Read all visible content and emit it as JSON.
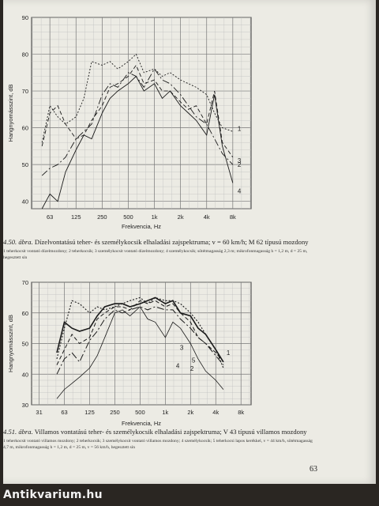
{
  "figures": [
    {
      "caption_label": "4.50. ábra.",
      "caption_text": "Dízelvontatású teher- és személykocsik elhaladási zajspektruma; v = 60 km/h; M 62 típusú mozdony",
      "caption_note": "1 teherkocsit vontató dízelmozdony; 2 teherkocsik; 3 személykocsit vontató dízelmozdony; 4 személykocsik; sötétmagasság 2,3 m; mikrofonmagasság h = 1,2 m, d = 25 m, hegesztett sín"
    },
    {
      "caption_label": "4.51. ábra.",
      "caption_text": "Villamos vontatású teher- és személykocsik elhaladási zajspektruma; V 43 típusú villamos mozdony",
      "caption_note": "1 teherkocsit vontató villamos mozdony; 2 teherkocsik; 3 személykocsit vontató villamos mozdony; 4 személykocsik; 5 teherkocsi lapos kerékkel, v = 44 km/h, sötétmagasság 4,7 m, mikrofonmagasság h = 1,2 m, d = 25 m, v = 56 km/h, hegesztett sín"
    }
  ],
  "page_number": "63",
  "watermark": "Antikvarium.hu",
  "chart_data": [
    {
      "type": "line",
      "xlabel": "Frekvencia, Hz",
      "ylabel": "Hangnyomásszint, dB",
      "ylim": [
        38,
        90
      ],
      "yticks": [
        40,
        50,
        60,
        70,
        80,
        90
      ],
      "categories": [
        "63",
        "125",
        "250",
        "500",
        "1k",
        "2k",
        "4k",
        "8k"
      ],
      "xlim": [
        -0.7,
        7.7
      ],
      "grid": true,
      "series": [
        {
          "name": "1",
          "x": [
            -0.3,
            0,
            0.3,
            0.6,
            1,
            1.3,
            1.6,
            2,
            2.3,
            2.6,
            3,
            3.3,
            3.6,
            4,
            4.3,
            4.6,
            5,
            5.3,
            5.6,
            6,
            6.3,
            6.6,
            7
          ],
          "y": [
            56,
            66,
            63,
            61,
            63,
            68,
            78,
            77,
            78,
            76,
            78,
            80,
            75,
            76,
            74,
            75,
            73,
            72,
            71,
            69,
            64,
            60,
            59
          ]
        },
        {
          "name": "2",
          "x": [
            -0.3,
            0,
            0.3,
            0.6,
            1,
            1.3,
            1.6,
            2,
            2.3,
            2.6,
            3,
            3.3,
            3.6,
            4,
            4.3,
            4.6,
            5,
            5.3,
            5.6,
            6,
            6.3,
            6.6,
            7
          ],
          "y": [
            47,
            49,
            50,
            52,
            57,
            59,
            61,
            69,
            72,
            71,
            75,
            74,
            71,
            76,
            73,
            72,
            69,
            66,
            63,
            61,
            57,
            53,
            50
          ]
        },
        {
          "name": "3",
          "x": [
            -0.3,
            0,
            0.3,
            0.6,
            1,
            1.3,
            1.6,
            2,
            2.3,
            2.6,
            3,
            3.3,
            3.6,
            4,
            4.3,
            4.6,
            5,
            5.3,
            5.6,
            6,
            6.3,
            6.6,
            7
          ],
          "y": [
            55,
            64,
            66,
            61,
            57,
            58,
            62,
            66,
            71,
            72,
            74,
            77,
            72,
            73,
            70,
            70,
            67,
            65,
            66,
            61,
            70,
            56,
            52
          ]
        },
        {
          "name": "4",
          "x": [
            -0.3,
            0,
            0.3,
            0.6,
            1,
            1.3,
            1.6,
            2,
            2.3,
            2.6,
            3,
            3.3,
            3.6,
            4,
            4.3,
            4.6,
            5,
            5.3,
            5.6,
            6,
            6.3,
            6.6,
            7
          ],
          "y": [
            38,
            42,
            40,
            48,
            54,
            58,
            57,
            64,
            68,
            70,
            72,
            74,
            70,
            72,
            68,
            70,
            66,
            64,
            62,
            58,
            69,
            55,
            45
          ]
        }
      ]
    },
    {
      "type": "line",
      "xlabel": "Frekvencia, Hz",
      "ylabel": "Hangnyomásszint, dB",
      "ylim": [
        30,
        70
      ],
      "yticks": [
        30,
        40,
        50,
        60,
        70
      ],
      "categories": [
        "31",
        "63",
        "125",
        "250",
        "500",
        "1k",
        "2k",
        "4k",
        "8k"
      ],
      "xlim": [
        -0.3,
        8.4
      ],
      "grid": true,
      "series": [
        {
          "name": "1",
          "x": [
            0.7,
            1,
            1.3,
            1.6,
            2,
            2.3,
            2.6,
            3,
            3.3,
            3.6,
            4,
            4.3,
            4.6,
            5,
            5.3,
            5.6,
            6,
            6.3,
            6.6,
            7,
            7.3
          ],
          "y": [
            47,
            57,
            55,
            54,
            55,
            59,
            62,
            63,
            63,
            62,
            63,
            64,
            65,
            63,
            64,
            60,
            59,
            55,
            53,
            48,
            44
          ]
        },
        {
          "name": "2",
          "x": [
            0.7,
            1,
            1.3,
            1.6,
            2,
            2.3,
            2.6,
            3,
            3.3,
            3.6,
            4,
            4.3,
            4.6,
            5,
            5.3,
            5.6,
            6,
            6.3,
            6.6,
            7,
            7.3
          ],
          "y": [
            43,
            48,
            53,
            50,
            52,
            58,
            60,
            62,
            62,
            61,
            64,
            63,
            64,
            62,
            63,
            60,
            57,
            52,
            50,
            47,
            44
          ]
        },
        {
          "name": "3",
          "x": [
            0.7,
            1,
            1.3,
            1.6,
            2,
            2.3,
            2.6,
            3,
            3.3,
            3.6,
            4,
            4.3,
            4.6,
            5,
            5.3,
            5.6,
            6,
            6.3,
            6.6,
            7,
            7.3
          ],
          "y": [
            40,
            45,
            47,
            44,
            51,
            54,
            58,
            61,
            60,
            61,
            62,
            61,
            62,
            61,
            61,
            58,
            55,
            52,
            50,
            46,
            43
          ]
        },
        {
          "name": "4",
          "x": [
            0.7,
            1,
            1.3,
            1.6,
            2,
            2.3,
            2.6,
            3,
            3.3,
            3.6,
            4,
            4.3,
            4.6,
            5,
            5.3,
            5.6,
            6,
            6.3,
            6.6,
            7,
            7.3
          ],
          "y": [
            32,
            35,
            37,
            39,
            42,
            46,
            52,
            60,
            61,
            59,
            62,
            58,
            57,
            52,
            57,
            55,
            50,
            45,
            41,
            38,
            35
          ]
        },
        {
          "name": "5",
          "x": [
            0.7,
            1,
            1.3,
            1.6,
            2,
            2.3,
            2.6,
            3,
            3.3,
            3.6,
            4,
            4.3,
            4.6,
            5,
            5.3,
            5.6,
            6,
            6.3,
            6.6,
            7,
            7.3
          ],
          "y": [
            45,
            55,
            64,
            63,
            60,
            62,
            61,
            62,
            63,
            64,
            65,
            63,
            65,
            64,
            64,
            63,
            60,
            57,
            53,
            48,
            42
          ]
        }
      ]
    }
  ]
}
